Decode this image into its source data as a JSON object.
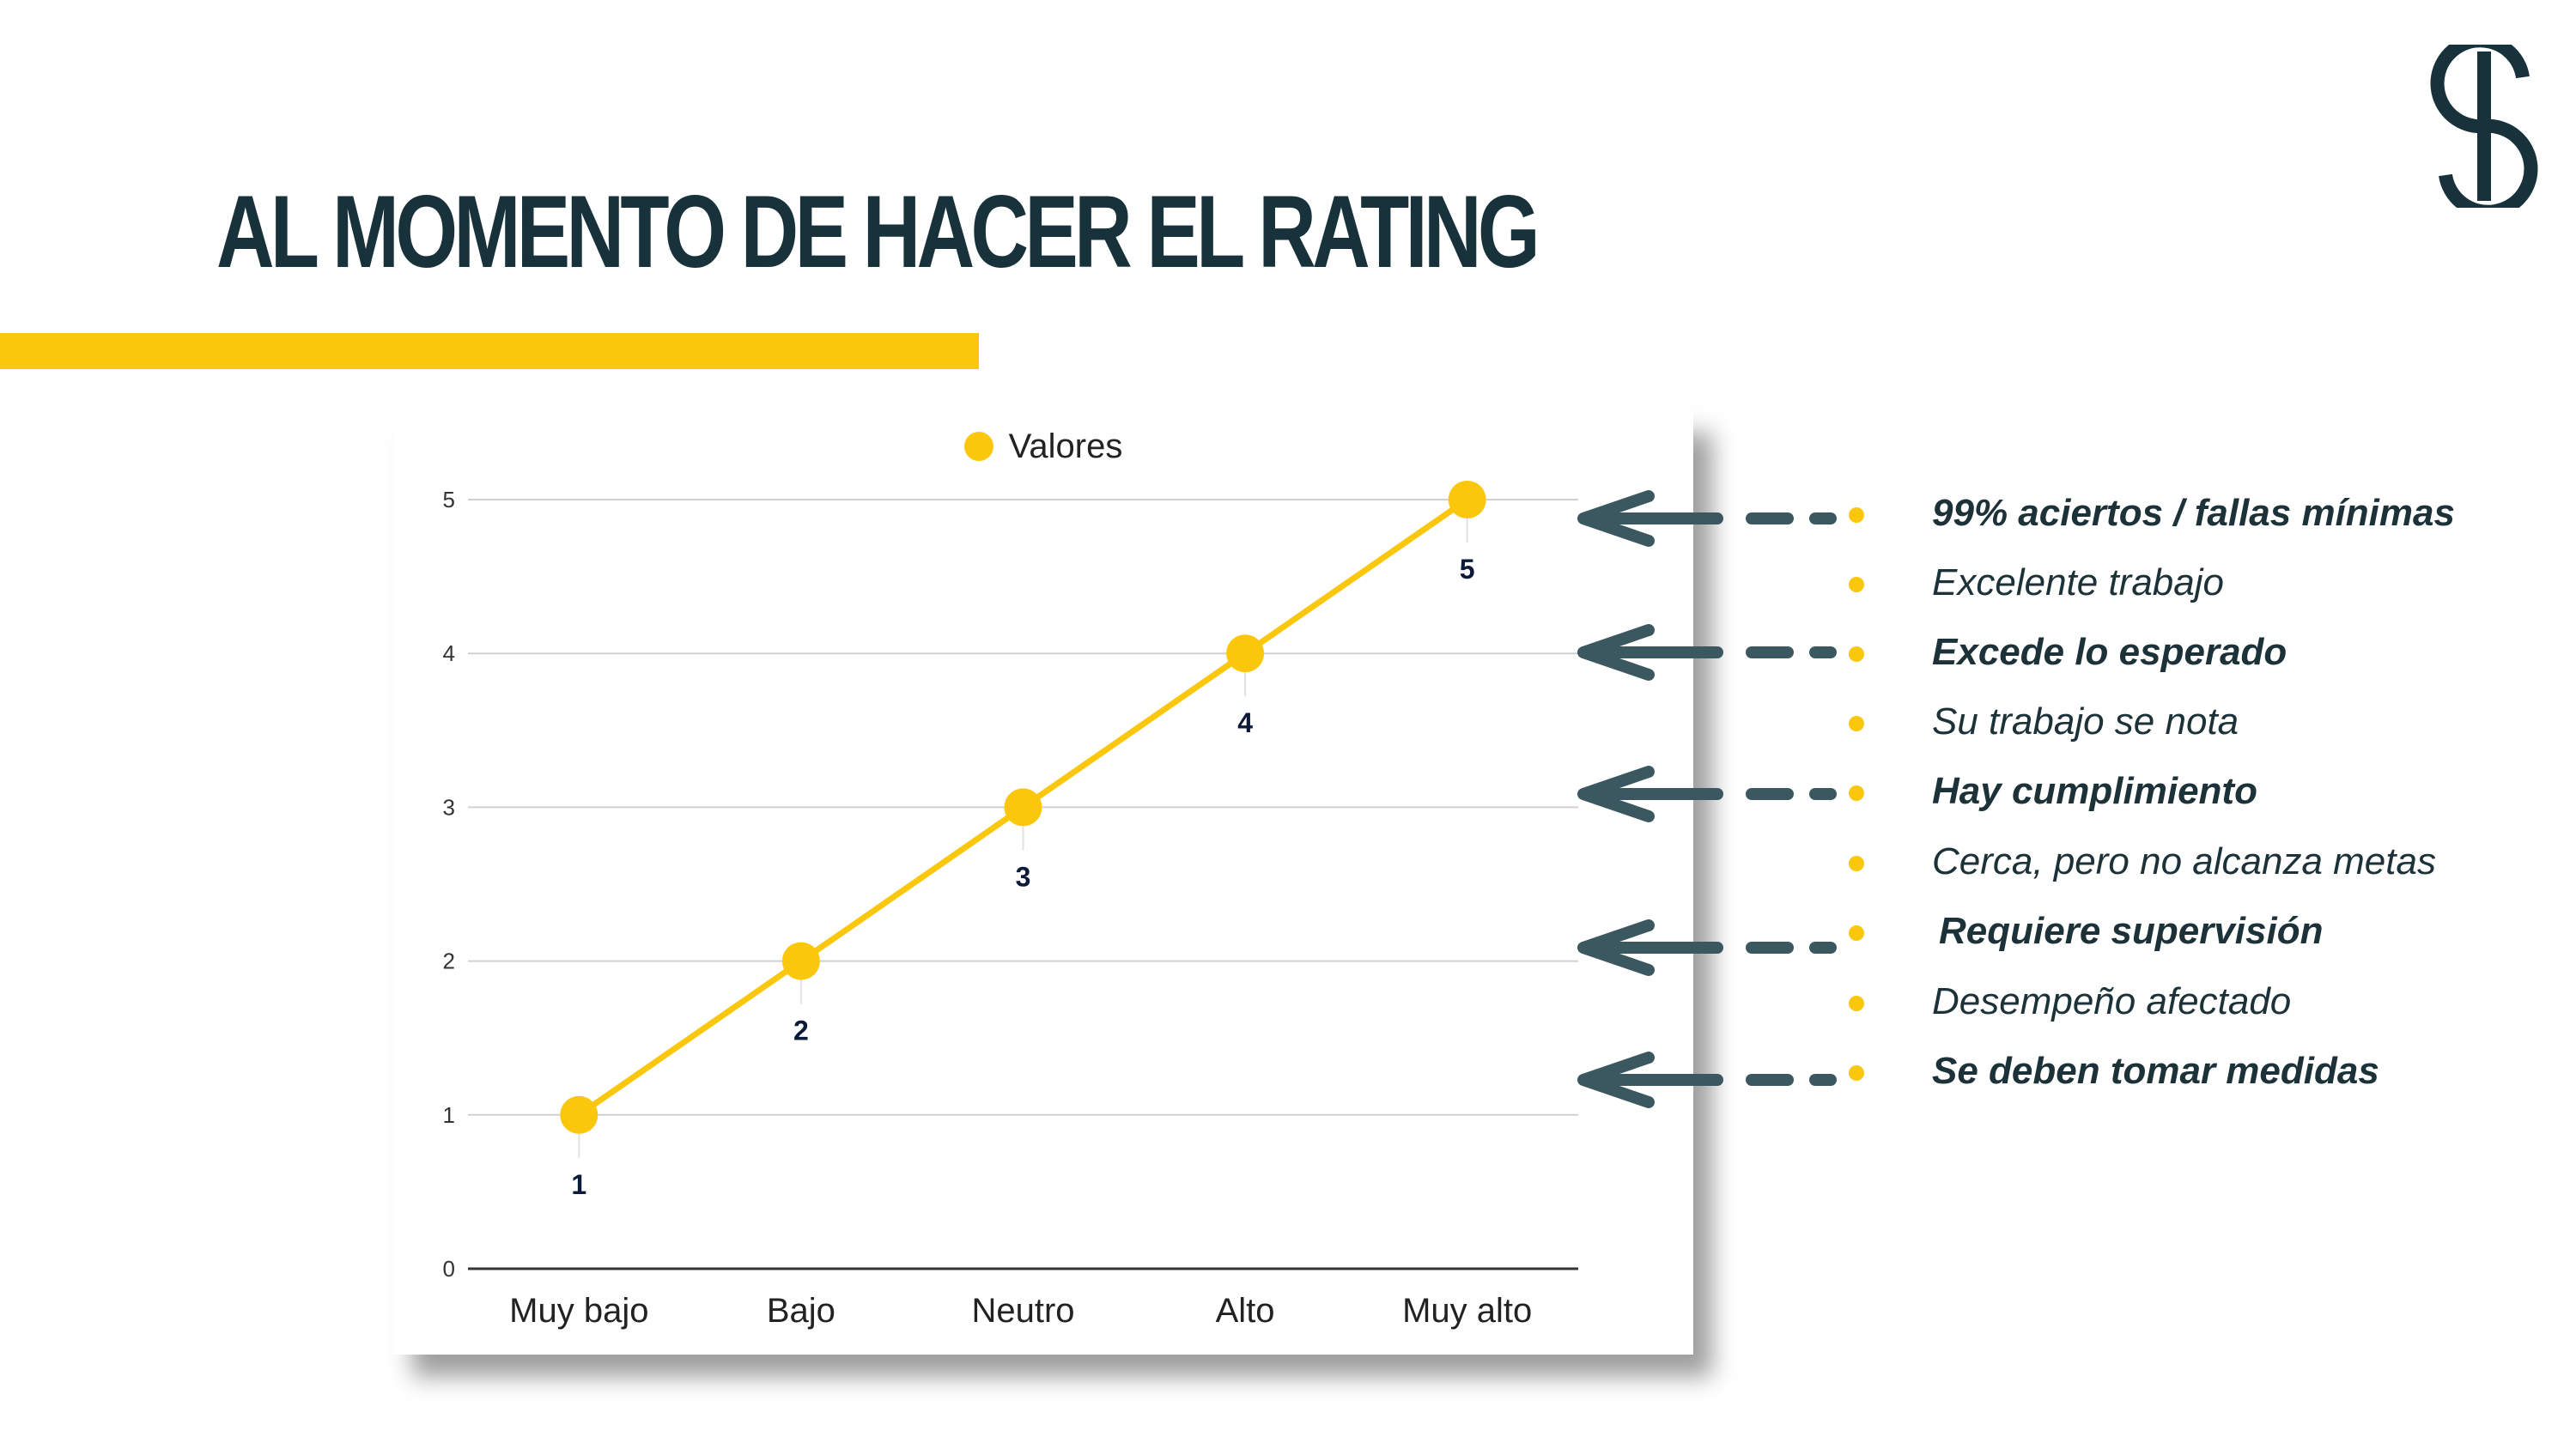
{
  "title": "AL MOMENTO DE HACER EL RATING",
  "colors": {
    "accent": "#fbc70c",
    "dark": "#17323a",
    "arrow": "#3b5860",
    "grid": "#d0d0d0",
    "axis": "#333333",
    "label": "#0b1a38"
  },
  "icons": {
    "logo": "s-logo-icon",
    "arrow": "arrow-left-icon",
    "bullet": "bullet-dot-icon"
  },
  "chart_data": {
    "type": "line",
    "categories": [
      "Muy bajo",
      "Bajo",
      "Neutro",
      "Alto",
      "Muy alto"
    ],
    "series": [
      {
        "name": "Valores",
        "values": [
          1,
          2,
          3,
          4,
          5
        ],
        "color": "#fbc70c"
      }
    ],
    "data_labels": [
      "1",
      "2",
      "3",
      "4",
      "5"
    ],
    "yticks": [
      "0",
      "1",
      "2",
      "3",
      "4",
      "5"
    ],
    "ylim": [
      0,
      5
    ],
    "grid": true,
    "legend_position": "top-center"
  },
  "descriptors": [
    {
      "text": "99% aciertos / fallas mínimas",
      "bold": true,
      "arrow": true
    },
    {
      "text": "Excelente trabajo",
      "bold": false,
      "arrow": false
    },
    {
      "text": "Excede lo esperado",
      "bold": true,
      "arrow": true
    },
    {
      "text": "Su trabajo se nota",
      "bold": false,
      "arrow": false
    },
    {
      "text": "Hay cumplimiento",
      "bold": true,
      "arrow": true
    },
    {
      "text": "Cerca, pero no alcanza metas",
      "bold": false,
      "arrow": false
    },
    {
      "text": "Requiere supervisión",
      "bold": true,
      "arrow": true
    },
    {
      "text": "Desempeño afectado",
      "bold": false,
      "arrow": false
    },
    {
      "text": "Se deben tomar medidas",
      "bold": true,
      "arrow": true
    }
  ]
}
